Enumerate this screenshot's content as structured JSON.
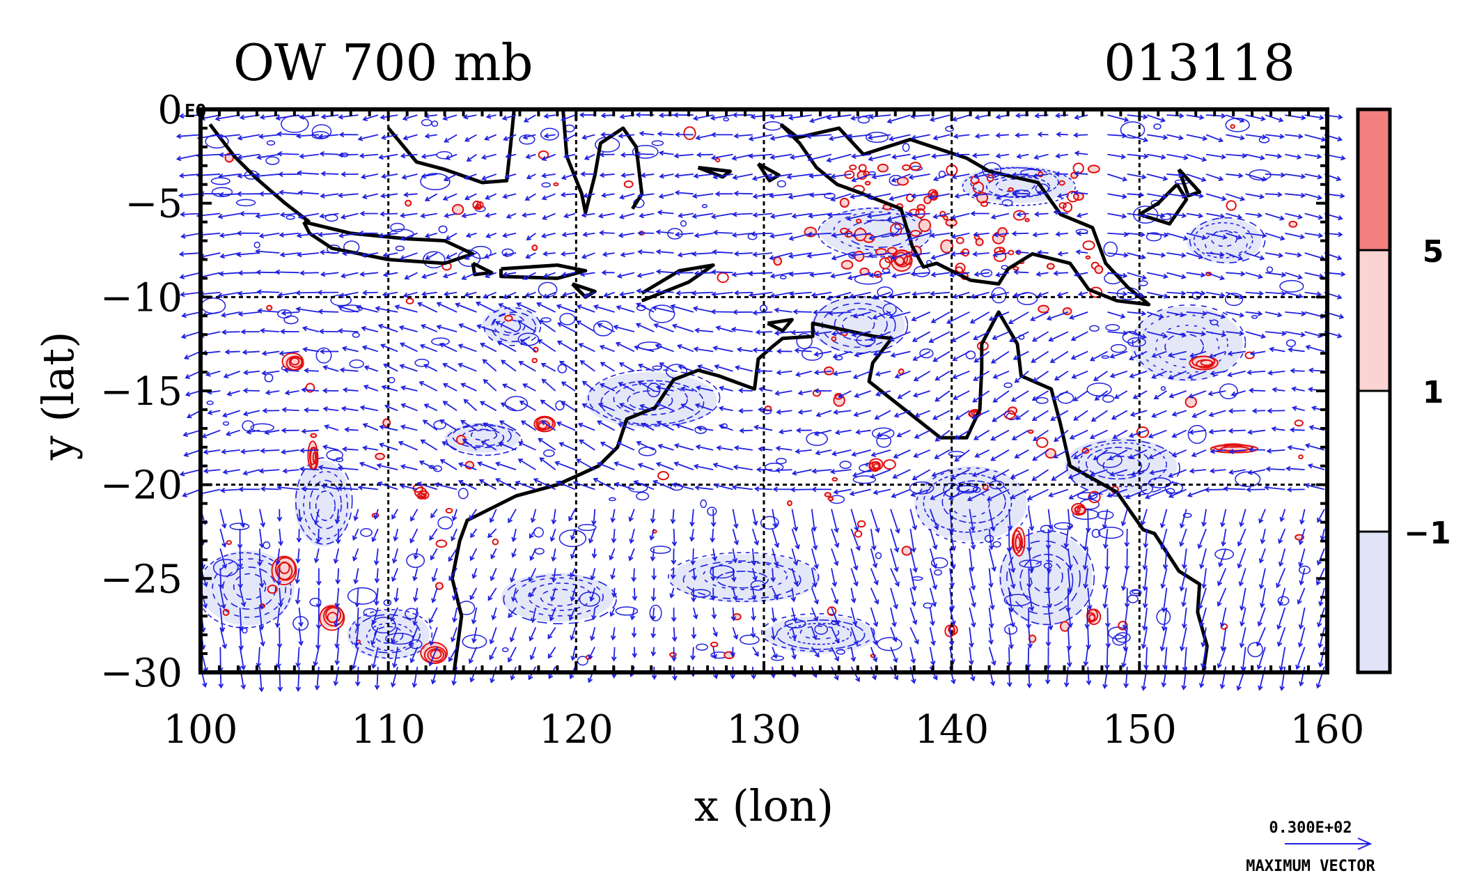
{
  "title_left": "OW 700 mb",
  "title_right": "013118",
  "xlabel": "x (lon)",
  "ylabel": "y (lat)",
  "equator_label": "EQ",
  "x_ticks": [
    "100",
    "110",
    "120",
    "130",
    "140",
    "150",
    "160"
  ],
  "y_ticks": [
    "0",
    "−5",
    "−10",
    "−15",
    "−20",
    "−25",
    "−30"
  ],
  "colorbar": {
    "labels": [
      "5",
      "1",
      "−1"
    ],
    "colors": {
      "strong_pos": "#f28080",
      "weak_pos": "#fbd3d3",
      "neutral": "#ffffff",
      "neg": "#e1e4f7"
    }
  },
  "vector_legend": {
    "value": "0.300E+02",
    "caption": "MAXIMUM VECTOR"
  },
  "colors": {
    "vectors": "#1f1fe0",
    "pos_contour": "#e01010",
    "neg_contour": "#1f1fe0",
    "coast": "#000000"
  },
  "chart_data": {
    "type": "map",
    "xlim": [
      100,
      160
    ],
    "ylim": [
      -30,
      0
    ],
    "grid": true,
    "grid_lon": [
      110,
      120,
      130,
      140,
      150
    ],
    "grid_lat": [
      -10,
      -20
    ],
    "levels": [
      -1,
      1,
      5
    ],
    "coastlines": [
      [
        [
          100.5,
          -0.8
        ],
        [
          101.8,
          -2.5
        ],
        [
          103,
          -3.7
        ],
        [
          104.5,
          -5
        ],
        [
          105.8,
          -6
        ]
      ],
      [
        [
          105.5,
          -6
        ],
        [
          108,
          -6.6
        ],
        [
          111,
          -6.9
        ],
        [
          113,
          -7
        ],
        [
          114.5,
          -7.7
        ],
        [
          113,
          -8.2
        ],
        [
          110,
          -8
        ],
        [
          107,
          -7.4
        ],
        [
          105.8,
          -6.6
        ],
        [
          105.5,
          -6
        ]
      ],
      [
        [
          114.5,
          -8.2
        ],
        [
          115.5,
          -8.7
        ],
        [
          114.6,
          -8.8
        ],
        [
          114.5,
          -8.2
        ]
      ],
      [
        [
          116,
          -8.5
        ],
        [
          119,
          -8.3
        ],
        [
          120.5,
          -8.6
        ],
        [
          119,
          -9
        ],
        [
          116,
          -8.9
        ],
        [
          116,
          -8.5
        ]
      ],
      [
        [
          119.8,
          -9.3
        ],
        [
          121,
          -9.7
        ],
        [
          120.5,
          -10
        ],
        [
          119.8,
          -9.3
        ]
      ],
      [
        [
          123.5,
          -9.8
        ],
        [
          125.5,
          -8.6
        ],
        [
          127.3,
          -8.3
        ],
        [
          126,
          -9.2
        ],
        [
          123.5,
          -10.2
        ]
      ],
      [
        [
          110,
          -1
        ],
        [
          111.5,
          -2.8
        ],
        [
          113,
          -3.2
        ],
        [
          115,
          -3.9
        ],
        [
          116.3,
          -3.8
        ],
        [
          116.5,
          -2
        ],
        [
          116.7,
          0
        ]
      ],
      [
        [
          119.3,
          0
        ],
        [
          119.5,
          -2.5
        ],
        [
          120.3,
          -4.5
        ],
        [
          120.5,
          -5.5
        ],
        [
          121,
          -3.5
        ],
        [
          121.3,
          -1.8
        ],
        [
          122.5,
          -1
        ],
        [
          123.2,
          -2
        ],
        [
          123.5,
          -4.5
        ],
        [
          123,
          -5.3
        ]
      ],
      [
        [
          126.5,
          -3.1
        ],
        [
          127.8,
          -3.6
        ],
        [
          128.2,
          -3.3
        ],
        [
          126.5,
          -3.1
        ]
      ],
      [
        [
          129.7,
          -2.9
        ],
        [
          130.8,
          -3.5
        ],
        [
          130.3,
          -3.8
        ],
        [
          129.7,
          -2.9
        ]
      ],
      [
        [
          130.9,
          -0.8
        ],
        [
          131.8,
          -1.5
        ],
        [
          134,
          -1
        ],
        [
          135.3,
          -2.4
        ],
        [
          137.8,
          -1.6
        ],
        [
          140.8,
          -2.6
        ],
        [
          142,
          -3.3
        ],
        [
          144.6,
          -3.9
        ],
        [
          145.8,
          -5.6
        ],
        [
          147.5,
          -6.3
        ],
        [
          148.2,
          -8.2
        ],
        [
          149.4,
          -9.5
        ],
        [
          150.5,
          -10.4
        ],
        [
          148.8,
          -10.2
        ],
        [
          147.3,
          -9.6
        ],
        [
          146.3,
          -8.2
        ],
        [
          144.3,
          -7.7
        ],
        [
          143,
          -8.5
        ],
        [
          142.5,
          -9.3
        ],
        [
          141,
          -9.1
        ],
        [
          139.2,
          -8.2
        ],
        [
          138.5,
          -8.4
        ],
        [
          137.9,
          -7.3
        ],
        [
          137.3,
          -5.3
        ],
        [
          135,
          -4.4
        ],
        [
          133.9,
          -4
        ],
        [
          132.8,
          -3.1
        ],
        [
          131.9,
          -1.8
        ],
        [
          130.9,
          -0.8
        ]
      ],
      [
        [
          152,
          -4
        ],
        [
          151,
          -5
        ],
        [
          150,
          -5.6
        ],
        [
          151.6,
          -6.1
        ],
        [
          152.5,
          -4.8
        ],
        [
          152,
          -4
        ]
      ],
      [
        [
          152.1,
          -3.2
        ],
        [
          153.2,
          -4.4
        ],
        [
          152.6,
          -4.6
        ],
        [
          152.1,
          -3.2
        ]
      ],
      [
        [
          130.2,
          -11.4
        ],
        [
          131.5,
          -11.2
        ],
        [
          131,
          -11.8
        ],
        [
          130.2,
          -11.4
        ]
      ],
      [
        [
          113.5,
          -30
        ],
        [
          113.9,
          -27
        ],
        [
          113.4,
          -25
        ],
        [
          113.8,
          -23
        ],
        [
          114.2,
          -21.9
        ],
        [
          116.8,
          -20.6
        ],
        [
          119,
          -20
        ],
        [
          121.2,
          -19
        ],
        [
          122.2,
          -18
        ],
        [
          122.7,
          -16.5
        ],
        [
          124.2,
          -15.9
        ],
        [
          125.2,
          -14.4
        ],
        [
          126.5,
          -13.9
        ],
        [
          127.6,
          -14.2
        ],
        [
          129.5,
          -14.9
        ],
        [
          129.7,
          -13.3
        ],
        [
          130.5,
          -12.6
        ],
        [
          131,
          -12.2
        ],
        [
          132.6,
          -12.1
        ],
        [
          132.6,
          -11.4
        ],
        [
          135.9,
          -12.1
        ],
        [
          136.8,
          -12.2
        ],
        [
          135.8,
          -13.5
        ],
        [
          135.6,
          -14.5
        ],
        [
          137.5,
          -16
        ],
        [
          139.4,
          -17.5
        ],
        [
          140.8,
          -17.5
        ],
        [
          141.5,
          -16
        ],
        [
          141.6,
          -13.8
        ],
        [
          141.6,
          -12.5
        ],
        [
          142.5,
          -10.8
        ],
        [
          143.5,
          -12.5
        ],
        [
          143.7,
          -14.2
        ],
        [
          145.3,
          -14.9
        ],
        [
          145.8,
          -16.8
        ],
        [
          146.3,
          -19
        ],
        [
          148.8,
          -20.4
        ],
        [
          150.2,
          -22.4
        ],
        [
          150.8,
          -22.6
        ],
        [
          152.1,
          -24.6
        ],
        [
          153.2,
          -25.3
        ],
        [
          153.1,
          -26.8
        ],
        [
          153.6,
          -28.6
        ],
        [
          153.4,
          -30
        ]
      ]
    ],
    "positive_regions": [
      [
        105,
        -13.5,
        1.1,
        0.9
      ],
      [
        104.5,
        -24.5,
        1.3,
        1.5
      ],
      [
        107,
        -27,
        1.3,
        1.3
      ],
      [
        106,
        -18.5,
        0.5,
        1.5
      ],
      [
        112.5,
        -29,
        1.4,
        1.1
      ],
      [
        118.3,
        -16.8,
        1.1,
        0.8
      ],
      [
        137.3,
        -8,
        1.1,
        1.1
      ],
      [
        155,
        -18,
        2.5,
        0.4
      ],
      [
        147.5,
        -27,
        0.7,
        0.8
      ],
      [
        153.5,
        -13.5,
        1.5,
        0.7
      ],
      [
        143.5,
        -23,
        0.6,
        1.5
      ],
      [
        111.8,
        -20.5,
        0.6,
        0.5
      ],
      [
        135.9,
        -19,
        0.7,
        0.6
      ],
      [
        141.2,
        -16.2,
        0.6,
        0.4
      ],
      [
        140,
        -27.8,
        0.5,
        0.6
      ],
      [
        114.8,
        -5.2,
        0.4,
        0.4
      ],
      [
        139,
        -4.6,
        0.5,
        0.5
      ],
      [
        146.8,
        -21.3,
        0.7,
        0.6
      ]
    ],
    "negative_regions": [
      [
        102.5,
        -25.5,
        2.5,
        2
      ],
      [
        106.5,
        -21,
        1.5,
        2.3
      ],
      [
        110,
        -28,
        2.2,
        1.3
      ],
      [
        124,
        -15.5,
        3.5,
        1.5
      ],
      [
        135,
        -11.5,
        2.5,
        1.5
      ],
      [
        141,
        -21,
        3,
        2
      ],
      [
        149,
        -19,
        3,
        1.5
      ],
      [
        152.5,
        -12.5,
        3,
        2
      ],
      [
        129,
        -25,
        4,
        1.3
      ],
      [
        119,
        -26,
        3,
        1.3
      ],
      [
        145,
        -25,
        2.5,
        2.5
      ],
      [
        115,
        -17.5,
        2,
        0.8
      ],
      [
        136,
        -6.5,
        3,
        1.3
      ],
      [
        143.5,
        -4,
        3,
        1
      ],
      [
        154.5,
        -7,
        2,
        1.2
      ],
      [
        133,
        -28,
        3,
        1
      ],
      [
        116.5,
        -11.5,
        1.5,
        1
      ]
    ]
  }
}
